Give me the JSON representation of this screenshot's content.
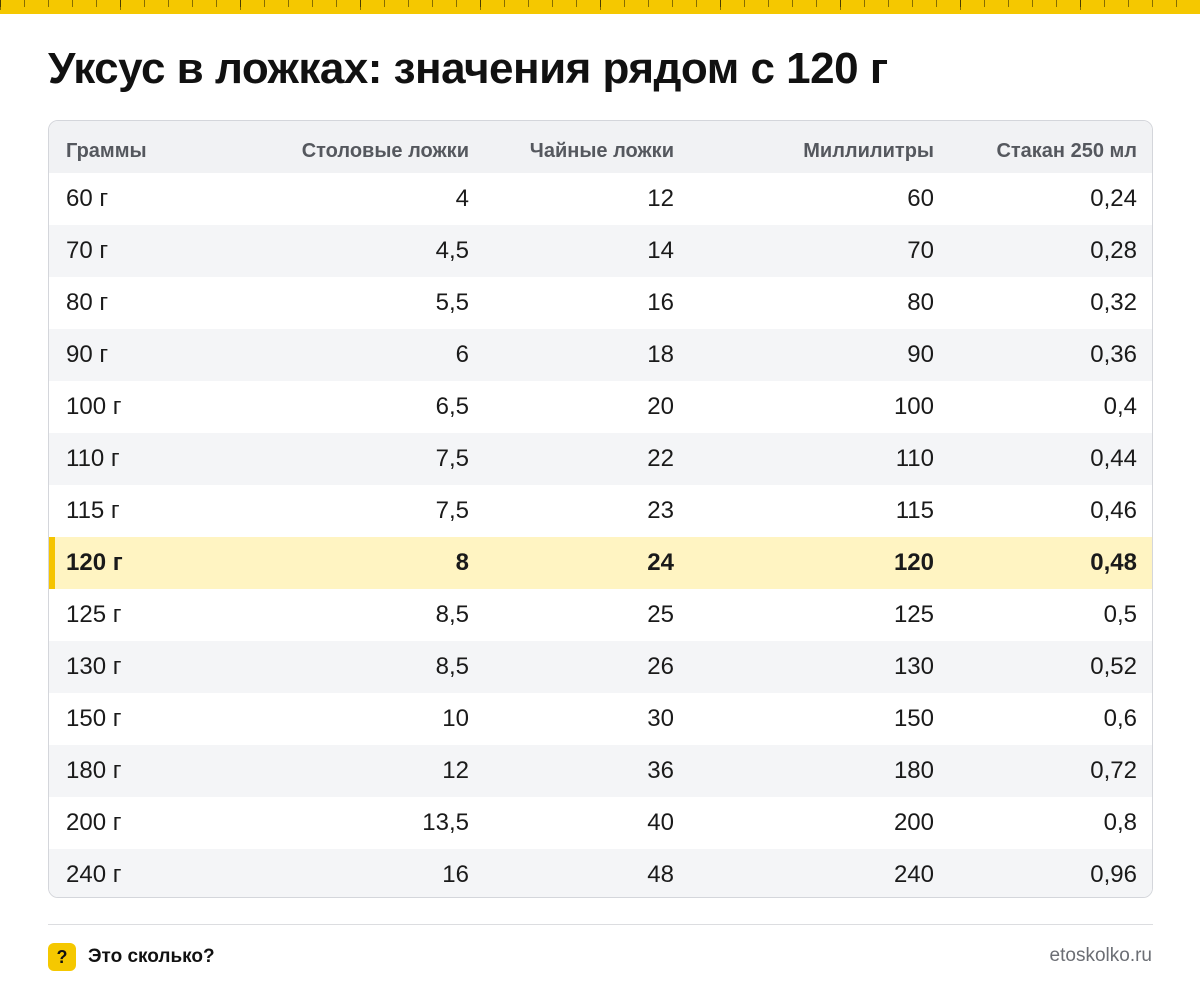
{
  "title": "Уксус в ложках: значения рядом с 120 г",
  "table": {
    "headers": [
      "Граммы",
      "Столовые ложки",
      "Чайные ложки",
      "Миллилитры",
      "Стакан 250 мл"
    ],
    "highlight_index": 7,
    "rows": [
      [
        "60 г",
        "4",
        "12",
        "60",
        "0,24"
      ],
      [
        "70 г",
        "4,5",
        "14",
        "70",
        "0,28"
      ],
      [
        "80 г",
        "5,5",
        "16",
        "80",
        "0,32"
      ],
      [
        "90 г",
        "6",
        "18",
        "90",
        "0,36"
      ],
      [
        "100 г",
        "6,5",
        "20",
        "100",
        "0,4"
      ],
      [
        "110 г",
        "7,5",
        "22",
        "110",
        "0,44"
      ],
      [
        "115 г",
        "7,5",
        "23",
        "115",
        "0,46"
      ],
      [
        "120 г",
        "8",
        "24",
        "120",
        "0,48"
      ],
      [
        "125 г",
        "8,5",
        "25",
        "125",
        "0,5"
      ],
      [
        "130 г",
        "8,5",
        "26",
        "130",
        "0,52"
      ],
      [
        "150 г",
        "10",
        "30",
        "150",
        "0,6"
      ],
      [
        "180 г",
        "12",
        "36",
        "180",
        "0,72"
      ],
      [
        "200 г",
        "13,5",
        "40",
        "200",
        "0,8"
      ],
      [
        "240 г",
        "16",
        "48",
        "240",
        "0,96"
      ]
    ]
  },
  "footer": {
    "logo_symbol": "?",
    "brand": "Это сколько?",
    "site": "etoskolko.ru"
  },
  "colors": {
    "accent": "#f5c800",
    "highlight_row": "#fff4c2",
    "header_bg": "#f1f2f4"
  }
}
